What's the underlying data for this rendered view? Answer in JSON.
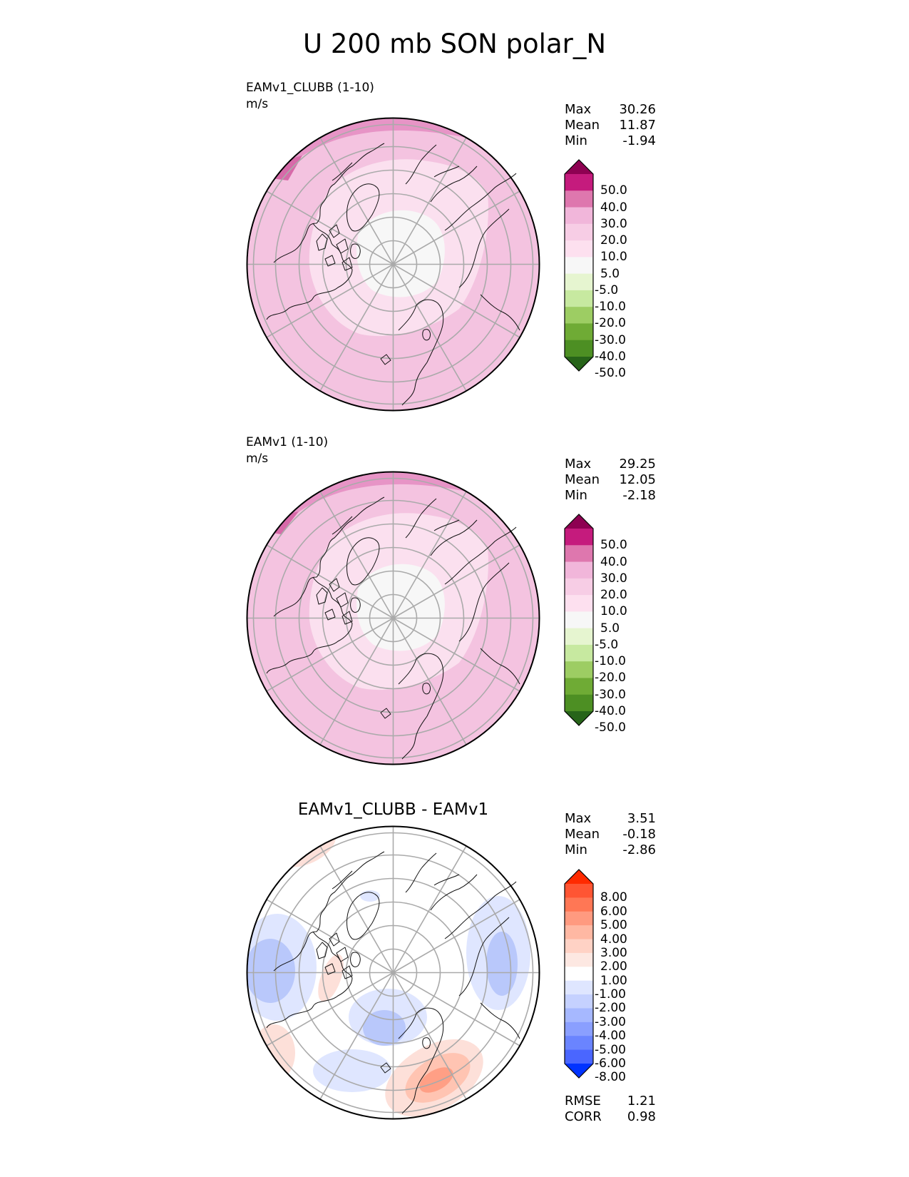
{
  "title": "U 200 mb SON polar_N",
  "panels": [
    {
      "title": "EAMv1_CLUBB (1-10)",
      "units": "m/s",
      "stats": [
        {
          "label": "Max",
          "value": "30.26"
        },
        {
          "label": "Mean",
          "value": "11.87"
        },
        {
          "label": "Min",
          "value": "-1.94"
        }
      ]
    },
    {
      "title": "EAMv1 (1-10)",
      "units": "m/s",
      "stats": [
        {
          "label": "Max",
          "value": "29.25"
        },
        {
          "label": "Mean",
          "value": "12.05"
        },
        {
          "label": "Min",
          "value": "-2.18"
        }
      ]
    },
    {
      "title": "EAMv1_CLUBB - EAMv1",
      "stats": [
        {
          "label": "Max",
          "value": "3.51"
        },
        {
          "label": "Mean",
          "value": "-0.18"
        },
        {
          "label": "Min",
          "value": "-2.86"
        }
      ],
      "extra_stats": [
        {
          "label": "RMSE",
          "value": "1.21"
        },
        {
          "label": "CORR",
          "value": "0.98"
        }
      ]
    }
  ],
  "colorbars": {
    "field": {
      "ticks": [
        "50.0",
        "40.0",
        "30.0",
        "20.0",
        "10.0",
        "5.0",
        "-5.0",
        "-10.0",
        "-20.0",
        "-30.0",
        "-40.0",
        "-50.0"
      ],
      "colors": [
        "#8e0152",
        "#c51b7d",
        "#de77ae",
        "#f1b6da",
        "#f7cde5",
        "#fde0ef",
        "#f7f7f7",
        "#e6f5d0",
        "#c7e9a0",
        "#9dcd63",
        "#6fab35",
        "#4d8f23",
        "#276419"
      ]
    },
    "diff": {
      "ticks": [
        "8.00",
        "6.00",
        "5.00",
        "4.00",
        "3.00",
        "2.00",
        "1.00",
        "-1.00",
        "-2.00",
        "-3.00",
        "-4.00",
        "-5.00",
        "-6.00",
        "-8.00"
      ],
      "colors": [
        "#ff2a00",
        "#ff5533",
        "#ff7755",
        "#ff9a80",
        "#ffb8a3",
        "#ffd2c5",
        "#fde8e2",
        "#ffffff",
        "#dfe6ff",
        "#c5d1ff",
        "#a6b8ff",
        "#8a9fff",
        "#6a84ff",
        "#4a66ff",
        "#0033ff"
      ]
    }
  }
}
